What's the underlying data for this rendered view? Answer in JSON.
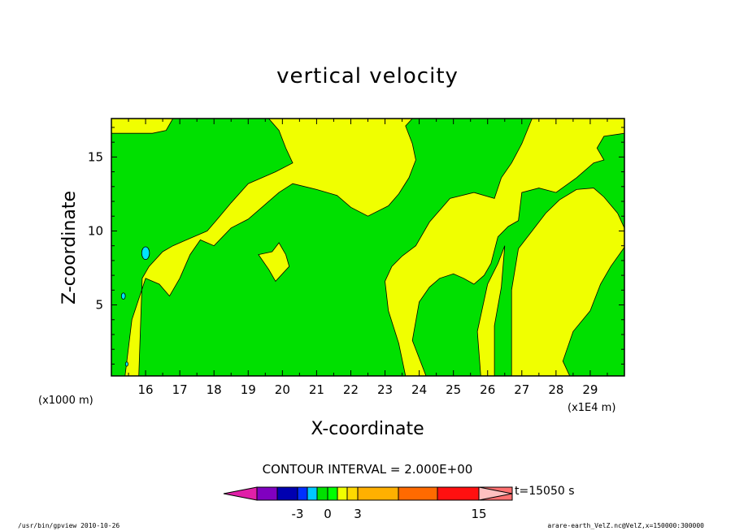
{
  "chart_data": {
    "type": "heatmap",
    "title": "vertical velocity",
    "xlabel": "X-coordinate",
    "ylabel": "Z-coordinate",
    "x_unit_left": "(x1000 m)",
    "x_unit_right": "(x1E4 m)",
    "xlim": [
      15.0,
      30.0
    ],
    "ylim": [
      0.2,
      17.6
    ],
    "xticks": [
      "16",
      "17",
      "18",
      "19",
      "20",
      "21",
      "22",
      "23",
      "24",
      "25",
      "26",
      "27",
      "28",
      "29"
    ],
    "yticks": [
      "5",
      "10",
      "15"
    ],
    "contour_interval_label": "CONTOUR INTERVAL = 2.000E+00",
    "time_label": "t=15050 s",
    "colorbar_labels": [
      "-3",
      "0",
      "3",
      "15"
    ],
    "colorbar_colors": [
      "#e020a8",
      "#8000c0",
      "#0000b0",
      "#0030ff",
      "#00c8ff",
      "#00e000",
      "#00ff00",
      "#f0ff00",
      "#ffd800",
      "#ffb000",
      "#ff6a00",
      "#ff1010",
      "#ff7070",
      "#ffc0c0"
    ],
    "fill_colors": {
      "positive": "#f0ff00",
      "negative": "#00e000",
      "strong_negative": "#00e4ff"
    },
    "regions": [
      {
        "level": "0 to 2",
        "color": "#f0ff00",
        "points": [
          [
            15.4,
            0.2
          ],
          [
            15.6,
            4.0
          ],
          [
            16.0,
            6.8
          ],
          [
            16.4,
            6.4
          ],
          [
            16.7,
            5.6
          ],
          [
            17.0,
            6.8
          ],
          [
            17.3,
            8.4
          ],
          [
            17.6,
            9.4
          ],
          [
            18.0,
            9.0
          ],
          [
            18.5,
            10.2
          ],
          [
            19.0,
            10.8
          ],
          [
            19.5,
            11.8
          ],
          [
            19.9,
            12.6
          ],
          [
            20.3,
            13.2
          ],
          [
            21.0,
            12.8
          ],
          [
            21.6,
            12.4
          ],
          [
            22.0,
            11.6
          ],
          [
            22.5,
            11.0
          ],
          [
            23.1,
            11.7
          ],
          [
            23.4,
            12.5
          ],
          [
            23.7,
            13.6
          ],
          [
            23.9,
            14.8
          ],
          [
            23.8,
            15.9
          ],
          [
            23.6,
            17.1
          ],
          [
            23.8,
            17.6
          ],
          [
            19.6,
            17.6
          ],
          [
            19.9,
            16.8
          ],
          [
            20.1,
            15.6
          ],
          [
            20.3,
            14.6
          ],
          [
            19.8,
            14.0
          ],
          [
            19.0,
            13.2
          ],
          [
            18.5,
            11.9
          ],
          [
            18.1,
            10.8
          ],
          [
            17.8,
            10.0
          ],
          [
            17.2,
            9.4
          ],
          [
            16.8,
            9.0
          ],
          [
            16.5,
            8.6
          ],
          [
            16.1,
            7.6
          ],
          [
            15.9,
            6.8
          ],
          [
            15.8,
            0.2
          ]
        ]
      },
      {
        "level": "0 to 2",
        "color": "#f0ff00",
        "points": [
          [
            15.0,
            16.6
          ],
          [
            15.0,
            17.6
          ],
          [
            16.8,
            17.6
          ],
          [
            16.6,
            16.8
          ],
          [
            16.2,
            16.6
          ],
          [
            15.6,
            16.6
          ]
        ]
      },
      {
        "level": "0 to 2",
        "color": "#f0ff00",
        "points": [
          [
            19.3,
            8.4
          ],
          [
            19.7,
            8.6
          ],
          [
            19.9,
            9.2
          ],
          [
            20.1,
            8.4
          ],
          [
            20.2,
            7.6
          ],
          [
            19.8,
            6.6
          ],
          [
            19.6,
            7.4
          ]
        ]
      },
      {
        "level": "0 to 2",
        "color": "#f0ff00",
        "points": [
          [
            23.6,
            0.2
          ],
          [
            23.4,
            2.4
          ],
          [
            23.1,
            4.6
          ],
          [
            23.0,
            6.6
          ],
          [
            23.2,
            7.6
          ],
          [
            23.5,
            8.3
          ],
          [
            23.9,
            9.0
          ],
          [
            24.3,
            10.6
          ],
          [
            24.9,
            12.2
          ],
          [
            25.6,
            12.6
          ],
          [
            26.2,
            12.2
          ],
          [
            26.4,
            13.6
          ],
          [
            26.7,
            14.6
          ],
          [
            27.0,
            15.9
          ],
          [
            27.3,
            17.6
          ],
          [
            30.0,
            17.6
          ],
          [
            30.0,
            16.6
          ],
          [
            29.4,
            16.4
          ],
          [
            29.2,
            15.6
          ],
          [
            29.4,
            14.8
          ],
          [
            29.1,
            14.6
          ],
          [
            28.6,
            13.6
          ],
          [
            28.0,
            12.6
          ],
          [
            27.5,
            12.9
          ],
          [
            27.0,
            12.6
          ],
          [
            26.9,
            10.7
          ],
          [
            26.6,
            10.3
          ],
          [
            26.3,
            9.6
          ],
          [
            26.1,
            7.8
          ],
          [
            25.9,
            7.0
          ],
          [
            25.6,
            6.4
          ],
          [
            25.3,
            6.8
          ],
          [
            25.0,
            7.1
          ],
          [
            24.6,
            6.8
          ],
          [
            24.3,
            6.2
          ],
          [
            24.0,
            5.2
          ],
          [
            23.8,
            2.6
          ],
          [
            24.2,
            0.2
          ]
        ]
      },
      {
        "level": "0 to 2",
        "color": "#f0ff00",
        "points": [
          [
            25.8,
            0.2
          ],
          [
            25.7,
            3.2
          ],
          [
            26.0,
            6.4
          ],
          [
            26.3,
            7.8
          ],
          [
            26.5,
            9.0
          ],
          [
            26.4,
            6.2
          ],
          [
            26.2,
            3.6
          ],
          [
            26.2,
            0.2
          ]
        ]
      },
      {
        "level": "0 to 2",
        "color": "#f0ff00",
        "points": [
          [
            26.7,
            0.2
          ],
          [
            26.7,
            6.0
          ],
          [
            26.9,
            8.8
          ],
          [
            27.3,
            10.0
          ],
          [
            27.7,
            11.2
          ],
          [
            28.1,
            12.1
          ],
          [
            28.6,
            12.8
          ],
          [
            29.1,
            12.9
          ],
          [
            29.4,
            12.3
          ],
          [
            29.8,
            11.2
          ],
          [
            30.0,
            10.2
          ],
          [
            30.0,
            8.9
          ],
          [
            29.6,
            7.6
          ],
          [
            29.3,
            6.4
          ],
          [
            29.0,
            4.6
          ],
          [
            28.5,
            3.2
          ],
          [
            28.2,
            1.2
          ],
          [
            28.4,
            0.2
          ]
        ]
      }
    ],
    "dots": [
      {
        "x": 16.0,
        "y": 8.5,
        "r": 6,
        "color": "#00e4ff"
      },
      {
        "x": 15.35,
        "y": 5.6,
        "r": 3,
        "color": "#00e4ff"
      },
      {
        "x": 15.45,
        "y": 1.0,
        "r": 2,
        "color": "#00e4ff"
      }
    ]
  },
  "footer": {
    "left": "/usr/bin/gpview   2010-10-26",
    "right": "arare-earth_VelZ.nc@VelZ,x=150000:300000"
  }
}
